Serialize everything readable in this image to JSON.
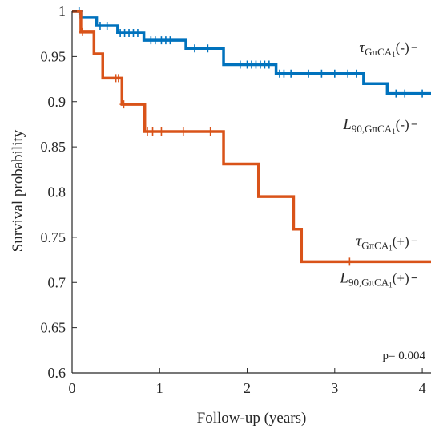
{
  "chart_data": {
    "type": "line",
    "subtype": "kaplan-meier-step",
    "xlabel": "Follow-up (years)",
    "ylabel": "Survival probability",
    "xlim": [
      0,
      4.1
    ],
    "ylim": [
      0.6,
      1.0
    ],
    "x_ticks": [
      "0",
      "1",
      "2",
      "3",
      "4"
    ],
    "y_ticks": [
      "0.6",
      "0.65",
      "0.7",
      "0.75",
      "0.8",
      "0.85",
      "0.9",
      "0.95",
      "1"
    ],
    "grid": false,
    "p_value_label": "p= 0.004",
    "colors": {
      "negative": "#0072BD",
      "positive": "#D95319",
      "axis": "#262626"
    },
    "series": [
      {
        "key": "negative",
        "steps": [
          [
            0,
            1.0
          ],
          [
            0.1,
            0.993
          ],
          [
            0.28,
            0.984
          ],
          [
            0.52,
            0.976
          ],
          [
            0.82,
            0.968
          ],
          [
            1.3,
            0.959
          ],
          [
            1.73,
            0.941
          ],
          [
            2.33,
            0.931
          ],
          [
            3.33,
            0.92
          ],
          [
            3.6,
            0.909
          ],
          [
            4.1,
            0.909
          ]
        ],
        "censored": [
          [
            0.08,
            1.0
          ],
          [
            0.32,
            0.984
          ],
          [
            0.4,
            0.984
          ],
          [
            0.55,
            0.976
          ],
          [
            0.6,
            0.976
          ],
          [
            0.65,
            0.976
          ],
          [
            0.7,
            0.976
          ],
          [
            0.75,
            0.976
          ],
          [
            0.9,
            0.968
          ],
          [
            0.95,
            0.968
          ],
          [
            1.02,
            0.968
          ],
          [
            1.07,
            0.968
          ],
          [
            1.12,
            0.968
          ],
          [
            1.4,
            0.959
          ],
          [
            1.55,
            0.959
          ],
          [
            1.92,
            0.941
          ],
          [
            2.0,
            0.941
          ],
          [
            2.05,
            0.941
          ],
          [
            2.1,
            0.941
          ],
          [
            2.15,
            0.941
          ],
          [
            2.2,
            0.941
          ],
          [
            2.25,
            0.941
          ],
          [
            2.37,
            0.931
          ],
          [
            2.42,
            0.931
          ],
          [
            2.5,
            0.931
          ],
          [
            2.7,
            0.931
          ],
          [
            2.85,
            0.931
          ],
          [
            3.0,
            0.931
          ],
          [
            3.15,
            0.931
          ],
          [
            3.25,
            0.931
          ],
          [
            3.7,
            0.909
          ],
          [
            3.8,
            0.909
          ],
          [
            4.0,
            0.909
          ]
        ]
      },
      {
        "key": "positive",
        "steps": [
          [
            0,
            1.0
          ],
          [
            0.1,
            0.977
          ],
          [
            0.25,
            0.953
          ],
          [
            0.35,
            0.926
          ],
          [
            0.57,
            0.897
          ],
          [
            0.83,
            0.867
          ],
          [
            1.73,
            0.831
          ],
          [
            2.13,
            0.795
          ],
          [
            2.53,
            0.759
          ],
          [
            2.62,
            0.723
          ],
          [
            4.1,
            0.723
          ]
        ],
        "censored": [
          [
            0.12,
            0.977
          ],
          [
            0.5,
            0.926
          ],
          [
            0.53,
            0.926
          ],
          [
            0.59,
            0.897
          ],
          [
            0.86,
            0.867
          ],
          [
            0.92,
            0.867
          ],
          [
            1.02,
            0.867
          ],
          [
            1.27,
            0.867
          ],
          [
            1.58,
            0.867
          ],
          [
            3.17,
            0.723
          ]
        ]
      }
    ],
    "annotations": [
      {
        "key": "tau_neg",
        "base": "τ",
        "sub": "GπCA",
        "subsub": "1",
        "tail": "(-)",
        "x": 3.85,
        "y": 0.96
      },
      {
        "key": "L_neg",
        "base": "L",
        "sub": "90,GπCA",
        "subsub": "1",
        "tail": "(-)",
        "x": 3.85,
        "y": 0.875
      },
      {
        "key": "tau_pos",
        "base": "τ",
        "sub": "GπCA",
        "subsub": "1",
        "tail": "(+)",
        "x": 3.85,
        "y": 0.746
      },
      {
        "key": "L_pos",
        "base": "L",
        "sub": "90,GπCA",
        "subsub": "1",
        "tail": "(+)",
        "x": 3.85,
        "y": 0.705
      }
    ]
  }
}
